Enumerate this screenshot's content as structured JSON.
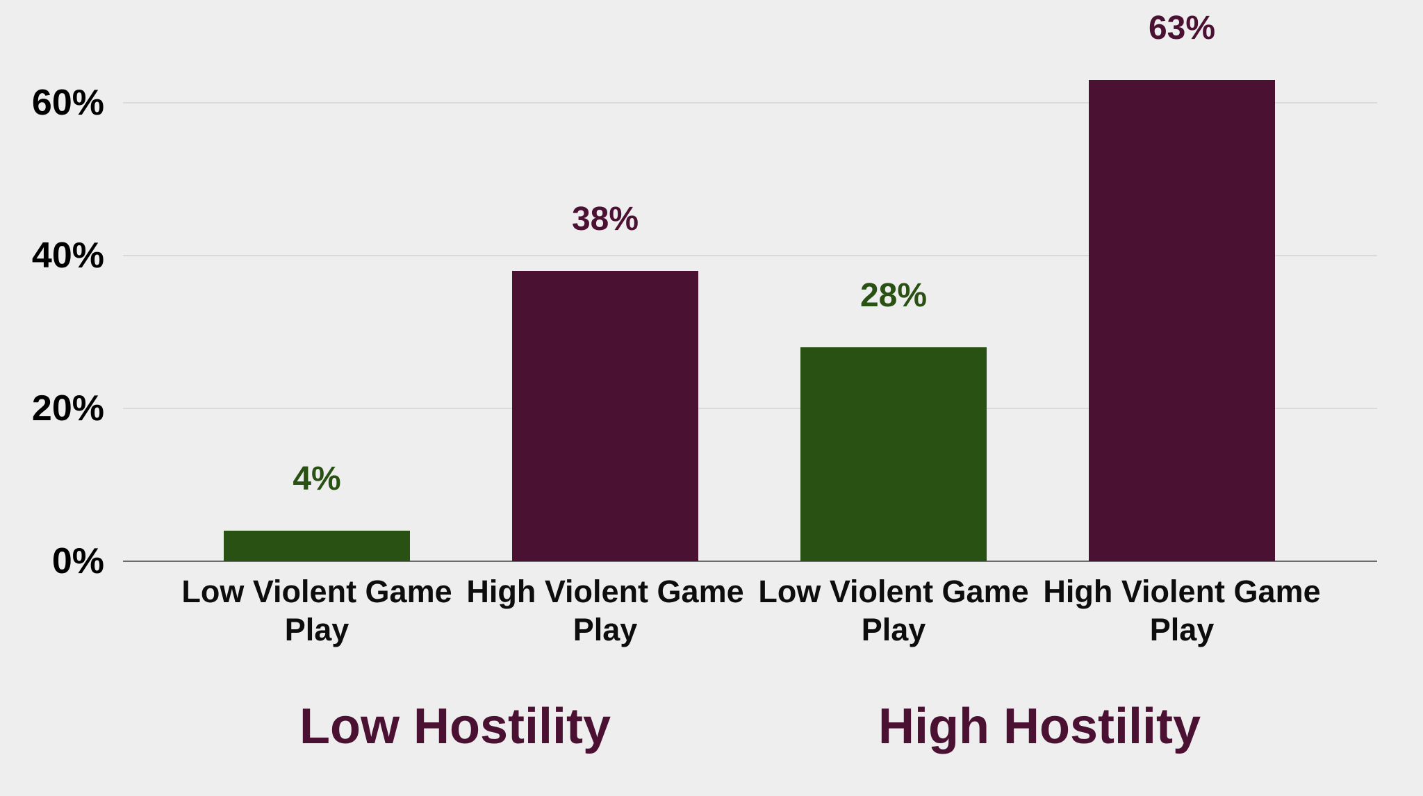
{
  "colors": {
    "background": "#eeeeee",
    "gridline": "#d8dadb",
    "axis_line": "#6b6b6b",
    "tick_label": "#000000",
    "category_label": "#0d0d0d",
    "group_label": "#4b1132",
    "green": "#2a5114",
    "maroon": "#4b1132"
  },
  "chart_data": {
    "type": "bar",
    "title": "",
    "xlabel": "",
    "ylabel": "",
    "ylim": [
      0,
      68
    ],
    "grid": "horizontal",
    "legend_position": "none",
    "y_ticks": [
      {
        "label": "0%",
        "value": 0
      },
      {
        "label": "20%",
        "value": 20
      },
      {
        "label": "40%",
        "value": 40
      },
      {
        "label": "60%",
        "value": 60
      }
    ],
    "bars": [
      {
        "category": "Low Violent Game Play",
        "value": 4,
        "label": "4%",
        "color": "#2a5114",
        "group": "Low Hostility"
      },
      {
        "category": "High Violent Game Play",
        "value": 38,
        "label": "38%",
        "color": "#4b1132",
        "group": "Low Hostility"
      },
      {
        "category": "Low Violent Game Play",
        "value": 28,
        "label": "28%",
        "color": "#2a5114",
        "group": "High Hostility"
      },
      {
        "category": "High Violent Game Play",
        "value": 63,
        "label": "63%",
        "color": "#4b1132",
        "group": "High Hostility"
      }
    ],
    "groups": [
      {
        "label": "Low Hostility"
      },
      {
        "label": "High Hostility"
      }
    ]
  }
}
